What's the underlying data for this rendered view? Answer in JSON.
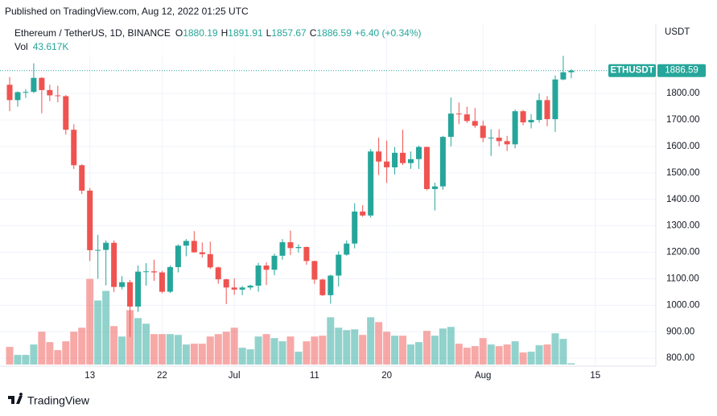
{
  "header": {
    "published": "Published on TradingView.com, Aug 12, 2022 01:25 UTC",
    "brand": "TradingView"
  },
  "chart_data": {
    "type": "candlestick",
    "title": "Ethereum / TetherUS, 1D, BINANCE",
    "legend": [
      {
        "key": "O",
        "value": "1880.19"
      },
      {
        "key": "H",
        "value": "1891.91"
      },
      {
        "key": "L",
        "value": "1857.67"
      },
      {
        "key": "C",
        "value": "1886.59"
      }
    ],
    "change": "+6.40 (+0.34%)",
    "volume_title": "Vol",
    "volume_last_label": "43.617K",
    "y_unit": "USDT",
    "symbol": "ETHUSDT",
    "up_color": "#26a69a",
    "down_color": "#ef5350",
    "grid": true,
    "ylim": [
      770,
      2062
    ],
    "yticks": [
      {
        "value": 800,
        "label": "800.00"
      },
      {
        "value": 900,
        "label": "900.00"
      },
      {
        "value": 1000,
        "label": "1000.00"
      },
      {
        "value": 1100,
        "label": "1100.00"
      },
      {
        "value": 1200,
        "label": "1200.00"
      },
      {
        "value": 1300,
        "label": "1300.00"
      },
      {
        "value": 1400,
        "label": "1400.00"
      },
      {
        "value": 1500,
        "label": "1500.00"
      },
      {
        "value": 1600,
        "label": "1600.00"
      },
      {
        "value": 1700,
        "label": "1700.00"
      },
      {
        "value": 1800,
        "label": "1800.00"
      }
    ],
    "volume_lim": [
      0,
      3500000
    ],
    "categories": [
      null,
      null,
      null,
      null,
      null,
      null,
      null,
      null,
      null,
      null,
      "13",
      null,
      null,
      null,
      null,
      null,
      null,
      null,
      null,
      "22",
      null,
      null,
      null,
      null,
      null,
      null,
      null,
      null,
      "Jul",
      null,
      null,
      null,
      null,
      null,
      null,
      null,
      null,
      null,
      "11",
      null,
      null,
      null,
      null,
      null,
      null,
      null,
      null,
      "20",
      null,
      null,
      null,
      null,
      null,
      null,
      null,
      null,
      null,
      null,
      null,
      "Aug",
      null,
      null,
      null,
      null,
      null,
      null,
      null,
      null,
      null,
      null,
      null,
      null,
      null,
      "15"
    ],
    "open": [
      1833,
      1775,
      1805,
      1806,
      1859,
      1813,
      1793,
      1790,
      1663,
      1529,
      1433,
      1208,
      1209,
      1236,
      1069,
      1087,
      995,
      1127,
      1128,
      1124,
      1051,
      1144,
      1225,
      1243,
      1200,
      1193,
      1143,
      1098,
      1067,
      1059,
      1067,
      1074,
      1150,
      1134,
      1187,
      1238,
      1216,
      1220,
      1167,
      1097,
      1038,
      1112,
      1191,
      1233,
      1354,
      1339,
      1581,
      1543,
      1521,
      1576,
      1537,
      1552,
      1598,
      1439,
      1449,
      1636,
      1724,
      1721,
      1696,
      1678,
      1632,
      1633,
      1620,
      1608,
      1733,
      1691,
      1700,
      1775,
      1703,
      1853,
      1880.19,
      null,
      null,
      null
    ],
    "high": [
      1862,
      1808,
      1817,
      1914,
      1862,
      1833,
      1829,
      1794,
      1684,
      1533,
      1443,
      1266,
      1245,
      1245,
      1110,
      1095,
      1150,
      1159,
      1172,
      1130,
      1150,
      1230,
      1250,
      1280,
      1237,
      1240,
      1146,
      1100,
      1101,
      1073,
      1078,
      1160,
      1162,
      1195,
      1250,
      1282,
      1230,
      1222,
      1168,
      1100,
      1115,
      1204,
      1245,
      1385,
      1378,
      1590,
      1633,
      1622,
      1598,
      1663,
      1581,
      1603,
      1599,
      1463,
      1640,
      1785,
      1766,
      1750,
      1745,
      1697,
      1665,
      1665,
      1640,
      1739,
      1738,
      1722,
      1800,
      1790,
      1868,
      1942,
      1891.91,
      null,
      null,
      null
    ],
    "low": [
      1733,
      1750,
      1783,
      1802,
      1725,
      1771,
      1767,
      1645,
      1515,
      1420,
      1167,
      1100,
      1075,
      1050,
      1060,
      880,
      975,
      1074,
      1092,
      1045,
      1046,
      1124,
      1185,
      1198,
      1180,
      1137,
      1081,
      1004,
      1039,
      1038,
      1058,
      1051,
      1076,
      1113,
      1172,
      1190,
      1199,
      1153,
      1081,
      1035,
      1006,
      1071,
      1187,
      1215,
      1334,
      1331,
      1492,
      1462,
      1494,
      1530,
      1515,
      1515,
      1434,
      1358,
      1436,
      1600,
      1684,
      1689,
      1670,
      1616,
      1564,
      1600,
      1583,
      1593,
      1680,
      1668,
      1690,
      1676,
      1655,
      1850,
      1857.67,
      null,
      null,
      null
    ],
    "close": [
      1775,
      1805,
      1806,
      1859,
      1813,
      1793,
      1790,
      1663,
      1529,
      1433,
      1208,
      1209,
      1236,
      1069,
      1087,
      995,
      1127,
      1128,
      1124,
      1051,
      1144,
      1225,
      1243,
      1200,
      1193,
      1143,
      1098,
      1067,
      1059,
      1067,
      1074,
      1150,
      1134,
      1187,
      1238,
      1216,
      1220,
      1167,
      1097,
      1038,
      1112,
      1191,
      1233,
      1354,
      1339,
      1581,
      1543,
      1521,
      1576,
      1537,
      1552,
      1598,
      1439,
      1449,
      1636,
      1724,
      1721,
      1696,
      1678,
      1632,
      1633,
      1620,
      1608,
      1733,
      1691,
      1700,
      1775,
      1703,
      1853,
      1880,
      1886.59,
      null,
      null,
      null
    ],
    "volume": [
      638000,
      348000,
      348000,
      725000,
      1189000,
      812000,
      522000,
      841000,
      1189000,
      1334000,
      3103000,
      2320000,
      2668000,
      1392000,
      1015000,
      1972000,
      1682000,
      1479000,
      1102000,
      1102000,
      1102000,
      1073000,
      725000,
      754000,
      754000,
      1015000,
      1102000,
      1189000,
      1334000,
      609000,
      551000,
      1015000,
      1102000,
      957000,
      841000,
      1015000,
      464000,
      841000,
      1015000,
      1044000,
      1711000,
      1334000,
      1247000,
      1276000,
      1073000,
      1711000,
      1537000,
      1189000,
      1044000,
      1044000,
      725000,
      812000,
      1218000,
      1044000,
      1305000,
      1363000,
      754000,
      609000,
      667000,
      957000,
      725000,
      667000,
      725000,
      841000,
      435000,
      464000,
      696000,
      725000,
      1131000,
      928000,
      43617,
      null,
      null,
      null
    ]
  }
}
